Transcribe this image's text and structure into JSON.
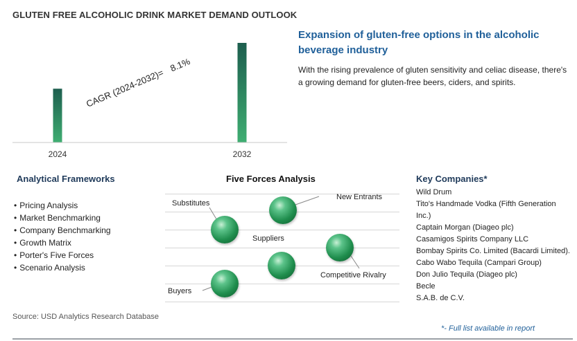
{
  "page_title": "GLUTEN FREE ALCOHOLIC DRINK MARKET DEMAND OUTLOOK",
  "chart_data": {
    "type": "bar",
    "categories": [
      "2024",
      "2032"
    ],
    "values": [
      0.54,
      1.0
    ],
    "value_scale": "relative (no axis values printed)",
    "annotation": "CAGR (2024-2032)=",
    "annotation_value": "8.1%",
    "title": "",
    "xlabel": "",
    "ylabel": "",
    "grid": false,
    "bar_colors": [
      "#1f6e5a",
      "#3ea66c"
    ]
  },
  "headline": "Expansion of gluten-free options in the alcoholic beverage industry",
  "description": "With the rising prevalence of gluten sensitivity and celiac disease, there's a growing demand for gluten-free beers, ciders, and spirits.",
  "frameworks": {
    "heading": "Analytical Frameworks",
    "items": [
      "Pricing Analysis",
      "Market Benchmarking",
      "Company Benchmarking",
      "Growth Matrix",
      "Porter's Five Forces",
      "Scenario Analysis"
    ]
  },
  "five_forces": {
    "heading": "Five Forces Analysis",
    "substitutes": "Substitutes",
    "new_entrants": "New Entrants",
    "suppliers": "Suppliers",
    "competitive_rivalry": "Competitive Rivalry",
    "buyers": "Buyers"
  },
  "companies": {
    "heading": "Key Companies*",
    "items": [
      "Wild Drum",
      "Tito's Handmade Vodka (Fifth Generation Inc.)",
      "Captain Morgan (Diageo plc)",
      "Casamigos Spirits Company LLC",
      "Bombay Spirits Co. Limited (Bacardi Limited).",
      "Cabo Wabo Tequila (Campari Group)",
      "Don Julio Tequila (Diageo plc)",
      "Becle",
      "S.A.B. de C.V."
    ],
    "footnote": "*- Full list available in report"
  },
  "source": "Source: USD Analytics Research Database",
  "colors": {
    "accent": "#1f5f99",
    "bar_dark": "#1f6e5a",
    "bar_light": "#3ea66c"
  }
}
